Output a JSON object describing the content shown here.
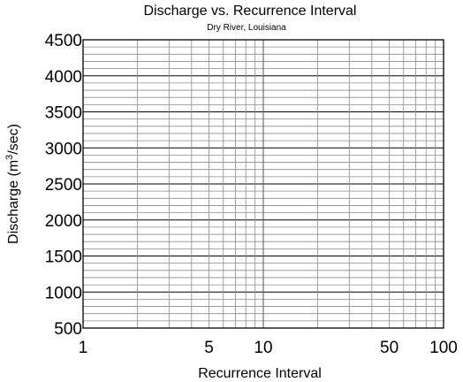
{
  "chart_data": {
    "type": "scatter",
    "title": "Discharge vs. Recurrence Interval",
    "subtitle": "Dry River, Louisiana",
    "xlabel": "Recurrence Interval",
    "ylabel": {
      "before": "Discharge (m",
      "sup": "3",
      "after": "/sec)"
    },
    "x_scale": "log",
    "xlim": [
      1,
      100
    ],
    "ylim": [
      500,
      4500
    ],
    "x_ticks": [
      1,
      5,
      10,
      50,
      100
    ],
    "y_ticks": [
      500,
      1000,
      1500,
      2000,
      2500,
      3000,
      3500,
      4000,
      4500
    ],
    "y_minor_step": 100,
    "grid": true,
    "series": []
  }
}
